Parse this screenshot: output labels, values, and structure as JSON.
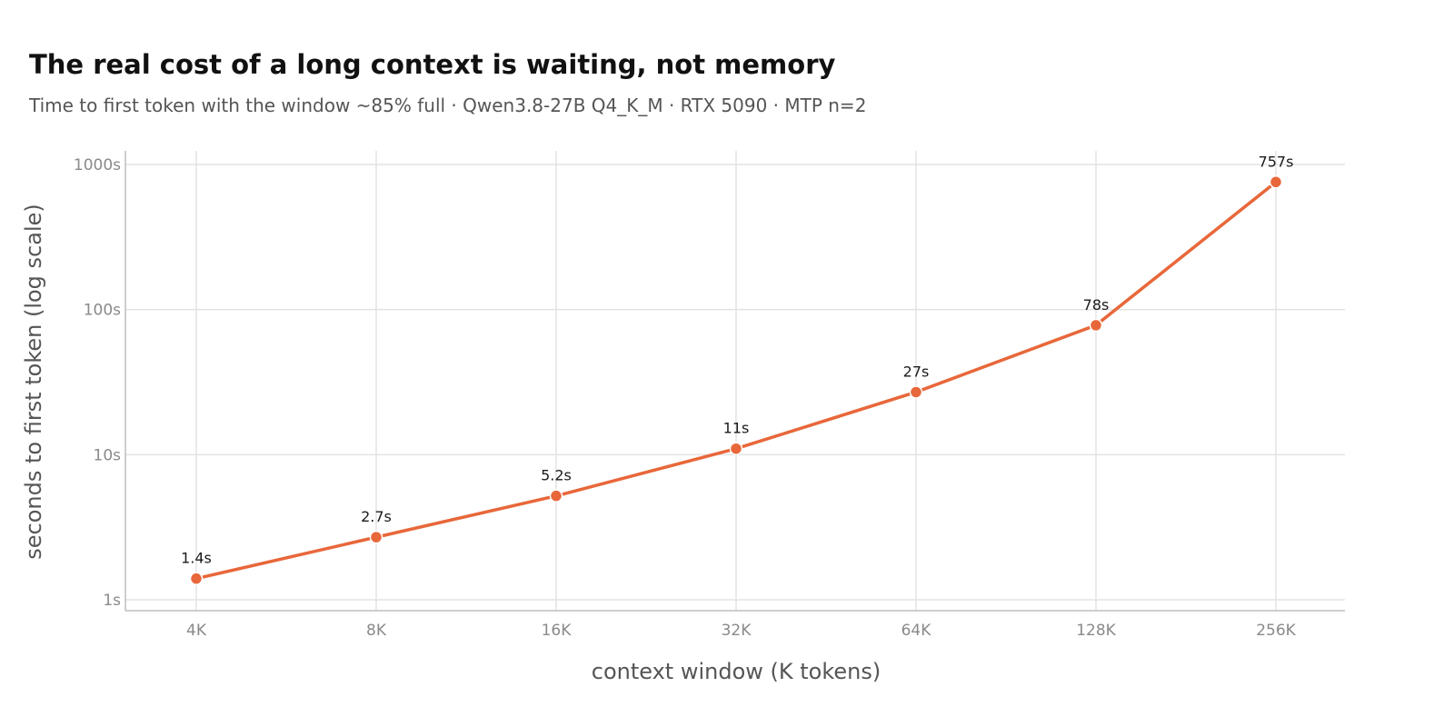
{
  "chart_data": {
    "type": "line",
    "title": "The real cost of a long context is waiting, not memory",
    "subtitle": "Time to first token with the window ~85% full · Qwen3.8-27B Q4_K_M · RTX 5090 · MTP n=2",
    "xlabel": "context window (K tokens)",
    "ylabel": "seconds to first token (log scale)",
    "y_scale": "log",
    "ylim": [
      1,
      1000
    ],
    "grid": true,
    "categories": [
      "4K",
      "8K",
      "16K",
      "32K",
      "64K",
      "128K",
      "256K"
    ],
    "series": [
      {
        "values": [
          1.4,
          2.7,
          5.2,
          11,
          27,
          78,
          757
        ],
        "labels": [
          "1.4s",
          "2.7s",
          "5.2s",
          "11s",
          "27s",
          "78s",
          "757s"
        ],
        "color": "#e8673a"
      }
    ],
    "y_ticks": [
      {
        "value": 1,
        "label": "1s"
      },
      {
        "value": 10,
        "label": "10s"
      },
      {
        "value": 100,
        "label": "100s"
      },
      {
        "value": 1000,
        "label": "1000s"
      }
    ]
  }
}
